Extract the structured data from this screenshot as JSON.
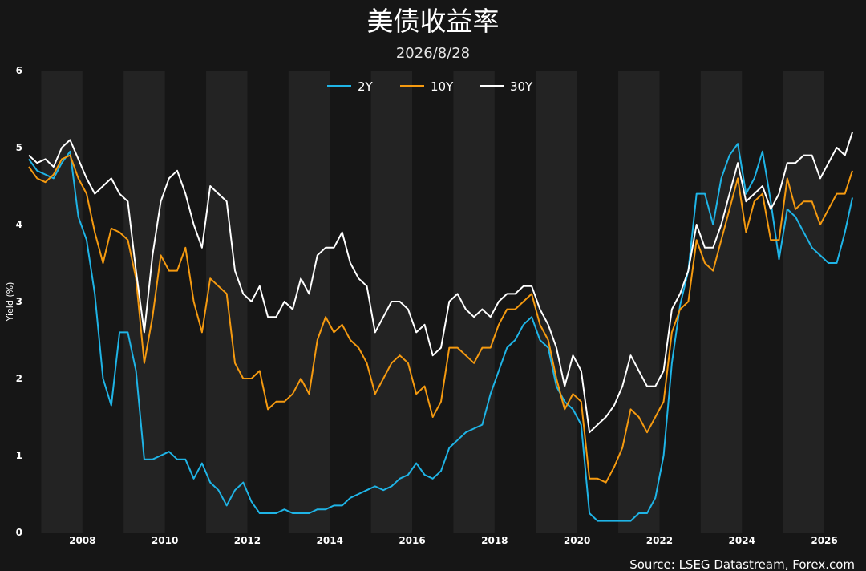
{
  "chart_data": {
    "type": "line",
    "title": "美债收益率",
    "subtitle": "2026/8/28",
    "ylabel": "Yield (%)",
    "xlabel": "",
    "source": "Source: LSEG Datastream, Forex.com",
    "xlim": [
      2006.7,
      2026.68
    ],
    "ylim": [
      0,
      6
    ],
    "yticks": [
      "0",
      "1",
      "2",
      "3",
      "4",
      "5",
      "6"
    ],
    "xticks": [
      "2008",
      "2010",
      "2012",
      "2014",
      "2016",
      "2018",
      "2020",
      "2022",
      "2024",
      "2026"
    ],
    "legend": "top-center",
    "grid": false,
    "background_bands": "alternating yearly shading",
    "x": [
      2006.7,
      2006.9,
      2007.1,
      2007.3,
      2007.5,
      2007.7,
      2007.9,
      2008.1,
      2008.3,
      2008.5,
      2008.7,
      2008.9,
      2009.1,
      2009.3,
      2009.5,
      2009.7,
      2009.9,
      2010.1,
      2010.3,
      2010.5,
      2010.7,
      2010.9,
      2011.1,
      2011.3,
      2011.5,
      2011.7,
      2011.9,
      2012.1,
      2012.3,
      2012.5,
      2012.7,
      2012.9,
      2013.1,
      2013.3,
      2013.5,
      2013.7,
      2013.9,
      2014.1,
      2014.3,
      2014.5,
      2014.7,
      2014.9,
      2015.1,
      2015.3,
      2015.5,
      2015.7,
      2015.9,
      2016.1,
      2016.3,
      2016.5,
      2016.7,
      2016.9,
      2017.1,
      2017.3,
      2017.5,
      2017.7,
      2017.9,
      2018.1,
      2018.3,
      2018.5,
      2018.7,
      2018.9,
      2019.1,
      2019.3,
      2019.5,
      2019.7,
      2019.9,
      2020.1,
      2020.3,
      2020.5,
      2020.7,
      2020.9,
      2021.1,
      2021.3,
      2021.5,
      2021.7,
      2021.9,
      2022.1,
      2022.3,
      2022.5,
      2022.7,
      2022.9,
      2023.1,
      2023.3,
      2023.5,
      2023.7,
      2023.9,
      2024.1,
      2024.3,
      2024.5,
      2024.7,
      2024.9,
      2025.1,
      2025.3,
      2025.5,
      2025.7,
      2025.9,
      2026.1,
      2026.3,
      2026.5,
      2026.68
    ],
    "series": [
      {
        "name": "2Y",
        "color": "#1fb4e6",
        "values": [
          4.85,
          4.7,
          4.65,
          4.6,
          4.8,
          4.95,
          4.1,
          3.8,
          3.1,
          2.0,
          1.65,
          2.6,
          2.6,
          2.1,
          0.95,
          0.95,
          1.0,
          1.05,
          0.95,
          0.95,
          0.7,
          0.9,
          0.65,
          0.55,
          0.35,
          0.55,
          0.65,
          0.4,
          0.25,
          0.25,
          0.25,
          0.3,
          0.25,
          0.25,
          0.25,
          0.3,
          0.3,
          0.35,
          0.35,
          0.45,
          0.5,
          0.55,
          0.6,
          0.55,
          0.6,
          0.7,
          0.75,
          0.9,
          0.75,
          0.7,
          0.8,
          1.1,
          1.2,
          1.3,
          1.35,
          1.4,
          1.8,
          2.1,
          2.4,
          2.5,
          2.7,
          2.8,
          2.5,
          2.4,
          1.9,
          1.7,
          1.6,
          1.4,
          0.25,
          0.15,
          0.15,
          0.15,
          0.15,
          0.15,
          0.25,
          0.25,
          0.45,
          1.0,
          2.2,
          2.95,
          3.4,
          4.4,
          4.4,
          4.0,
          4.6,
          4.9,
          5.05,
          4.4,
          4.6,
          4.95,
          4.3,
          3.55,
          4.2,
          4.1,
          3.9,
          3.7,
          3.6,
          3.5,
          3.5,
          3.9,
          4.35
        ]
      },
      {
        "name": "10Y",
        "color": "#f59a10",
        "values": [
          4.75,
          4.6,
          4.55,
          4.65,
          4.85,
          4.9,
          4.6,
          4.4,
          3.9,
          3.5,
          3.95,
          3.9,
          3.8,
          3.3,
          2.2,
          2.8,
          3.6,
          3.4,
          3.4,
          3.7,
          3.0,
          2.6,
          3.3,
          3.2,
          3.1,
          2.2,
          2.0,
          2.0,
          2.1,
          1.6,
          1.7,
          1.7,
          1.8,
          2.0,
          1.8,
          2.5,
          2.8,
          2.6,
          2.7,
          2.5,
          2.4,
          2.2,
          1.8,
          2.0,
          2.2,
          2.3,
          2.2,
          1.8,
          1.9,
          1.5,
          1.7,
          2.4,
          2.4,
          2.3,
          2.2,
          2.4,
          2.4,
          2.7,
          2.9,
          2.9,
          3.0,
          3.1,
          2.7,
          2.5,
          2.0,
          1.6,
          1.8,
          1.7,
          0.7,
          0.7,
          0.65,
          0.85,
          1.1,
          1.6,
          1.5,
          1.3,
          1.5,
          1.7,
          2.6,
          2.9,
          3.0,
          3.8,
          3.5,
          3.4,
          3.8,
          4.2,
          4.6,
          3.9,
          4.3,
          4.4,
          3.8,
          3.8,
          4.6,
          4.2,
          4.3,
          4.3,
          4.0,
          4.2,
          4.4,
          4.4,
          4.7
        ]
      },
      {
        "name": "30Y",
        "color": "#ffffff",
        "values": [
          4.9,
          4.8,
          4.85,
          4.75,
          5.0,
          5.1,
          4.85,
          4.6,
          4.4,
          4.5,
          4.6,
          4.4,
          4.3,
          3.4,
          2.6,
          3.6,
          4.3,
          4.6,
          4.7,
          4.4,
          4.0,
          3.7,
          4.5,
          4.4,
          4.3,
          3.4,
          3.1,
          3.0,
          3.2,
          2.8,
          2.8,
          3.0,
          2.9,
          3.3,
          3.1,
          3.6,
          3.7,
          3.7,
          3.9,
          3.5,
          3.3,
          3.2,
          2.6,
          2.8,
          3.0,
          3.0,
          2.9,
          2.6,
          2.7,
          2.3,
          2.4,
          3.0,
          3.1,
          2.9,
          2.8,
          2.9,
          2.8,
          3.0,
          3.1,
          3.1,
          3.2,
          3.2,
          2.9,
          2.7,
          2.4,
          1.9,
          2.3,
          2.1,
          1.3,
          1.4,
          1.5,
          1.65,
          1.9,
          2.3,
          2.1,
          1.9,
          1.9,
          2.1,
          2.9,
          3.1,
          3.4,
          4.0,
          3.7,
          3.7,
          4.0,
          4.4,
          4.8,
          4.3,
          4.4,
          4.5,
          4.2,
          4.4,
          4.8,
          4.8,
          4.9,
          4.9,
          4.6,
          4.8,
          5.0,
          4.9,
          5.2
        ]
      }
    ]
  }
}
